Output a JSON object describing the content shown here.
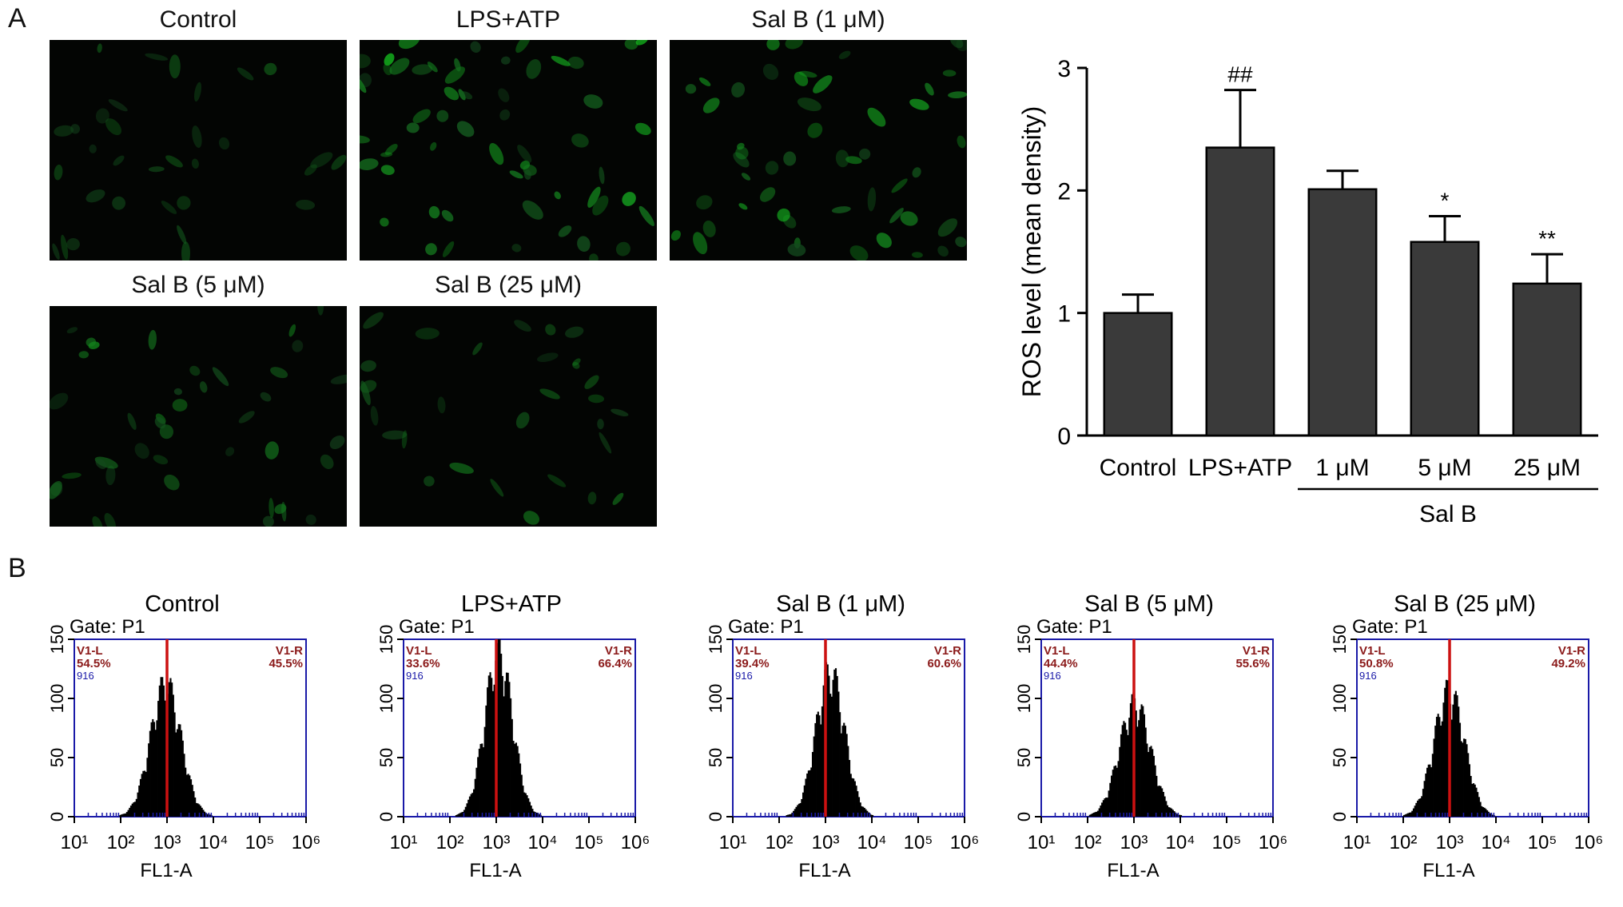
{
  "panel_labels": {
    "a": "A",
    "b": "B"
  },
  "micrographs": [
    {
      "title": "Control",
      "brightness": 0.35,
      "density": 32
    },
    {
      "title": "LPS+ATP",
      "brightness": 0.85,
      "density": 60
    },
    {
      "title": "Sal B (1 μM)",
      "brightness": 0.75,
      "density": 52
    },
    {
      "title": "Sal B (5 μM)",
      "brightness": 0.6,
      "density": 42
    },
    {
      "title": "Sal B (25 μM)",
      "brightness": 0.45,
      "density": 30
    }
  ],
  "chart_data": [
    {
      "type": "bar",
      "ylabel": "ROS level (mean density)",
      "ylim": [
        0,
        3
      ],
      "yticks": [
        0,
        1,
        2,
        3
      ],
      "categories": [
        "Control",
        "LPS+ATP",
        "1 μM",
        "5 μM",
        "25 μM"
      ],
      "values": [
        1.0,
        2.35,
        2.01,
        1.58,
        1.24
      ],
      "errors": [
        0.15,
        0.47,
        0.15,
        0.21,
        0.24
      ],
      "annotations": [
        "",
        "##",
        "",
        "*",
        "**"
      ],
      "group_label": "Sal B",
      "bar_color": "#3a3a3a"
    },
    {
      "type": "histogram",
      "x_scale": "log",
      "xlabel": "FL1-A",
      "gate_label": "Gate: P1",
      "xticks": [
        1,
        2,
        3,
        4,
        5,
        6
      ],
      "yticks": [
        0,
        50,
        100,
        150
      ],
      "ylim": [
        0,
        150
      ],
      "marker_color": "#cc1111",
      "frame_color": "#1a1aa8",
      "left_gate_label": "V1-L",
      "right_gate_label": "V1-R",
      "count_label": "916",
      "panels": [
        {
          "title": "Control",
          "left_pct": "54.5%",
          "right_pct": "45.5%",
          "peak_log": 2.97,
          "peak_count": 105,
          "width": 0.33,
          "marker_log": 3.0
        },
        {
          "title": "LPS+ATP",
          "left_pct": "33.6%",
          "right_pct": "66.4%",
          "peak_log": 3.05,
          "peak_count": 130,
          "width": 0.3,
          "marker_log": 3.0
        },
        {
          "title": "Sal B (1 μM)",
          "left_pct": "39.4%",
          "right_pct": "60.6%",
          "peak_log": 3.1,
          "peak_count": 115,
          "width": 0.31,
          "marker_log": 3.0
        },
        {
          "title": "Sal B (5 μM)",
          "left_pct": "44.4%",
          "right_pct": "55.6%",
          "peak_log": 3.02,
          "peak_count": 90,
          "width": 0.34,
          "marker_log": 3.0
        },
        {
          "title": "Sal B (25 μM)",
          "left_pct": "50.8%",
          "right_pct": "49.2%",
          "peak_log": 2.99,
          "peak_count": 100,
          "width": 0.33,
          "marker_log": 3.0
        }
      ]
    }
  ]
}
